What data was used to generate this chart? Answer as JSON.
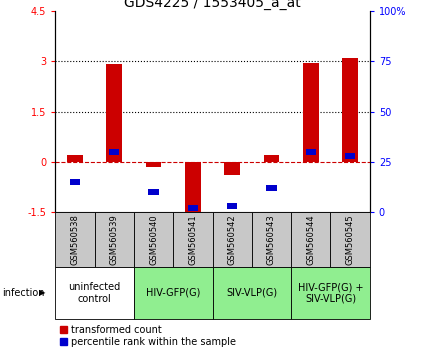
{
  "title": "GDS4225 / 1553405_a_at",
  "samples": [
    "GSM560538",
    "GSM560539",
    "GSM560540",
    "GSM560541",
    "GSM560542",
    "GSM560543",
    "GSM560544",
    "GSM560545"
  ],
  "transformed_count": [
    0.2,
    2.9,
    -0.15,
    -1.5,
    -0.4,
    0.2,
    2.95,
    3.1
  ],
  "percentile_rank_pct": [
    15,
    30,
    10,
    2,
    3,
    12,
    30,
    28
  ],
  "ylim_left": [
    -1.5,
    4.5
  ],
  "ylim_right": [
    0,
    100
  ],
  "yticks_left": [
    -1.5,
    0,
    1.5,
    3.0,
    4.5
  ],
  "ytick_labels_left": [
    "-1.5",
    "0",
    "1.5",
    "3",
    "4.5"
  ],
  "yticks_right": [
    0,
    25,
    50,
    75,
    100
  ],
  "ytick_labels_right": [
    "0",
    "25",
    "50",
    "75",
    "100%"
  ],
  "groups": [
    {
      "label": "uninfected\ncontrol",
      "cols": [
        0,
        1
      ],
      "color": "#ffffff"
    },
    {
      "label": "HIV-GFP(G)",
      "cols": [
        2,
        3
      ],
      "color": "#90ee90"
    },
    {
      "label": "SIV-VLP(G)",
      "cols": [
        4,
        5
      ],
      "color": "#90ee90"
    },
    {
      "label": "HIV-GFP(G) +\nSIV-VLP(G)",
      "cols": [
        6,
        7
      ],
      "color": "#90ee90"
    }
  ],
  "bar_color_red": "#cc0000",
  "bar_color_blue": "#0000cc",
  "bar_width": 0.4,
  "blue_square_size": 0.18,
  "background_plot": "#ffffff",
  "background_samples": "#c8c8c8",
  "zero_line_color": "#cc0000",
  "legend_red_label": "transformed count",
  "legend_blue_label": "percentile rank within the sample",
  "infection_label": "infection",
  "title_fontsize": 10,
  "tick_fontsize": 7,
  "sample_fontsize": 6,
  "group_fontsize": 7,
  "legend_fontsize": 7
}
